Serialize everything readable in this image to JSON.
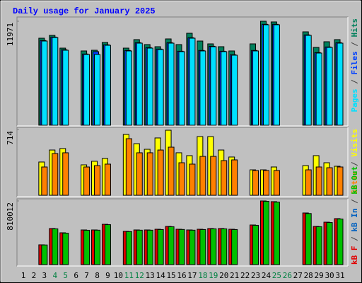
{
  "title": "Daily usage for January 2025",
  "legend_separator": " / ",
  "categories": [
    "1",
    "2",
    "3",
    "4",
    "5",
    "6",
    "7",
    "8",
    "9",
    "10",
    "11",
    "12",
    "13",
    "14",
    "15",
    "16",
    "17",
    "18",
    "19",
    "20",
    "21",
    "22",
    "23",
    "24",
    "25",
    "26",
    "27",
    "28",
    "29",
    "30",
    "31"
  ],
  "weekend_indices": [
    3,
    4,
    10,
    11,
    17,
    18,
    24,
    25
  ],
  "weekend_color": "#008040",
  "chart_data": [
    {
      "type": "bar",
      "ylim": [
        0,
        11971
      ],
      "yticks": [
        11971
      ],
      "legend_reversed": true,
      "series": [
        {
          "name": "Hits",
          "color": "#00805c",
          "values": [
            0,
            0,
            10017,
            10342,
            8876,
            0,
            8551,
            8632,
            9528,
            0,
            8876,
            9854,
            9284,
            9039,
            9935,
            9284,
            10587,
            9691,
            9365,
            9039,
            8551,
            0,
            9365,
            11971,
            11890,
            0,
            0,
            10749,
            8958,
            9609,
            9854
          ]
        },
        {
          "name": "Files",
          "color": "#0040ff",
          "values": [
            0,
            0,
            9750,
            10150,
            8690,
            0,
            8200,
            8469,
            9260,
            0,
            8610,
            9500,
            8930,
            8770,
            9500,
            8520,
            10070,
            8610,
            9090,
            8520,
            8110,
            0,
            8610,
            11620,
            11620,
            0,
            0,
            10400,
            8360,
            9010,
            9500
          ]
        },
        {
          "name": "Pages",
          "color": "#00e0ff",
          "values": [
            0,
            0,
            9691,
            10098,
            8632,
            0,
            8143,
            8143,
            9202,
            0,
            8551,
            9446,
            8876,
            8713,
            9446,
            8469,
            10017,
            8551,
            9039,
            8469,
            8062,
            0,
            8551,
            11564,
            11564,
            0,
            0,
            10342,
            8306,
            8958,
            9446
          ]
        }
      ]
    },
    {
      "type": "bar",
      "ylim": [
        0,
        714
      ],
      "yticks": [
        714
      ],
      "legend_reversed": true,
      "series": [
        {
          "name": "Visits",
          "color": "#ffff00",
          "values": [
            0,
            0,
            361,
            491,
            507,
            0,
            330,
            369,
            399,
            0,
            660,
            560,
            499,
            622,
            706,
            461,
            430,
            637,
            637,
            491,
            415,
            0,
            276,
            276,
            307,
            0,
            0,
            322,
            430,
            353,
            315
          ]
        },
        {
          "name": "Sites",
          "color": "#ff8000",
          "values": [
            0,
            0,
            307,
            453,
            461,
            0,
            307,
            322,
            338,
            0,
            614,
            461,
            461,
            491,
            522,
            353,
            338,
            422,
            422,
            376,
            384,
            0,
            269,
            269,
            269,
            0,
            0,
            276,
            307,
            299,
            307
          ]
        }
      ]
    },
    {
      "type": "bar",
      "ylim": [
        0,
        810012
      ],
      "yticks": [
        810012
      ],
      "legend_reversed": false,
      "series": [
        {
          "name": "kB F",
          "color": "#e00000",
          "values": [
            0,
            0,
            252004,
            459007,
            405006,
            0,
            441007,
            441007,
            513008,
            0,
            423006,
            441007,
            441007,
            450007,
            486007,
            450007,
            441007,
            450007,
            459007,
            459007,
            450007,
            0,
            504008,
            810012,
            801011,
            0,
            0,
            657010,
            486007,
            540008,
            585009
          ]
        },
        {
          "name": "kB In",
          "color": "#0060c0",
          "values": [
            0,
            0,
            0,
            0,
            0,
            0,
            0,
            0,
            0,
            0,
            0,
            0,
            0,
            0,
            0,
            0,
            0,
            0,
            0,
            0,
            0,
            0,
            0,
            0,
            0,
            0,
            0,
            0,
            0,
            0,
            0
          ]
        },
        {
          "name": "kB Out",
          "color": "#00c000",
          "values": [
            0,
            0,
            250000,
            455000,
            400000,
            0,
            437000,
            438000,
            508000,
            0,
            420000,
            438000,
            438000,
            446000,
            482000,
            447000,
            438000,
            446000,
            455000,
            455000,
            446000,
            0,
            500000,
            805000,
            795000,
            0,
            0,
            650000,
            482000,
            535000,
            580000
          ]
        }
      ]
    }
  ]
}
